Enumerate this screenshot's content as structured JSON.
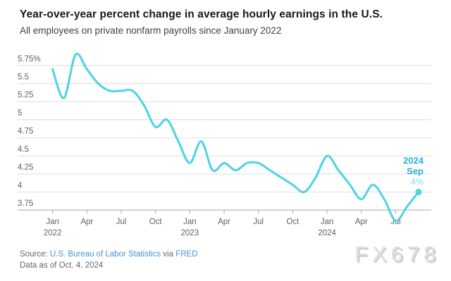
{
  "header": {
    "title": "Year-over-year percent change in average hourly earnings in the U.S.",
    "subtitle": "All employees on private nonfarm payrolls since January 2022"
  },
  "chart_data": {
    "type": "line",
    "title": "Year-over-year percent change in average hourly earnings in the U.S.",
    "subtitle": "All employees on private nonfarm payrolls since January 2022",
    "unit": "percent",
    "x": [
      "Jan 2022",
      "Feb 2022",
      "Mar 2022",
      "Apr 2022",
      "May 2022",
      "Jun 2022",
      "Jul 2022",
      "Aug 2022",
      "Sep 2022",
      "Oct 2022",
      "Nov 2022",
      "Dec 2022",
      "Jan 2023",
      "Feb 2023",
      "Mar 2023",
      "Apr 2023",
      "May 2023",
      "Jun 2023",
      "Jul 2023",
      "Aug 2023",
      "Sep 2023",
      "Oct 2023",
      "Nov 2023",
      "Dec 2023",
      "Jan 2024",
      "Feb 2024",
      "Mar 2024",
      "Apr 2024",
      "May 2024",
      "Jun 2024",
      "Jul 2024",
      "Aug 2024",
      "Sep 2024"
    ],
    "values": [
      5.7,
      5.3,
      5.9,
      5.7,
      5.5,
      5.4,
      5.4,
      5.4,
      5.2,
      4.9,
      5.0,
      4.7,
      4.4,
      4.7,
      4.3,
      4.4,
      4.3,
      4.4,
      4.4,
      4.3,
      4.2,
      4.1,
      4.0,
      4.2,
      4.5,
      4.3,
      4.1,
      3.9,
      4.1,
      3.9,
      3.6,
      3.8,
      4.0
    ],
    "ylim": [
      3.75,
      5.75
    ],
    "ytick_step": 0.25,
    "ytick_labels": [
      "3.75",
      "4",
      "4.25",
      "4.5",
      "4.75",
      "5",
      "5.25",
      "5.5",
      "5.75%"
    ],
    "xticks": [
      {
        "month": "Jan",
        "year": "2022",
        "index": 0
      },
      {
        "month": "Apr",
        "year": "",
        "index": 3
      },
      {
        "month": "Jul",
        "year": "",
        "index": 6
      },
      {
        "month": "Oct",
        "year": "",
        "index": 9
      },
      {
        "month": "Jan",
        "year": "2023",
        "index": 12
      },
      {
        "month": "Apr",
        "year": "",
        "index": 15
      },
      {
        "month": "Jul",
        "year": "",
        "index": 18
      },
      {
        "month": "Oct",
        "year": "",
        "index": 21
      },
      {
        "month": "Jan",
        "year": "2024",
        "index": 24
      },
      {
        "month": "Apr",
        "year": "",
        "index": 27
      },
      {
        "month": "Jul",
        "year": "",
        "index": 30
      }
    ],
    "grid": "horizontal",
    "legend": "none",
    "endpoint_annotation": {
      "year": "2024",
      "month": "Sep",
      "value_label": "4%"
    },
    "last_point": {
      "label": "Sep 2024",
      "value": 4.0
    }
  },
  "colors": {
    "line": "#4dd2e6",
    "dot": "#4dd2e6",
    "annotation_strong": "#28b0dc",
    "annotation_value": "#85d6ee",
    "gridline": "#dcdee1",
    "axis": "#a3a8ae",
    "axis_text": "#5b616b",
    "link": "#4a90d2"
  },
  "footer": {
    "source_prefix": "Source:",
    "source_link_1": "U.S. Bureau of Labor Statistics",
    "source_connector": "via",
    "source_link_2": "FRED",
    "data_as_of": "Data as of Oct. 4, 2024"
  },
  "watermark": "FX678"
}
